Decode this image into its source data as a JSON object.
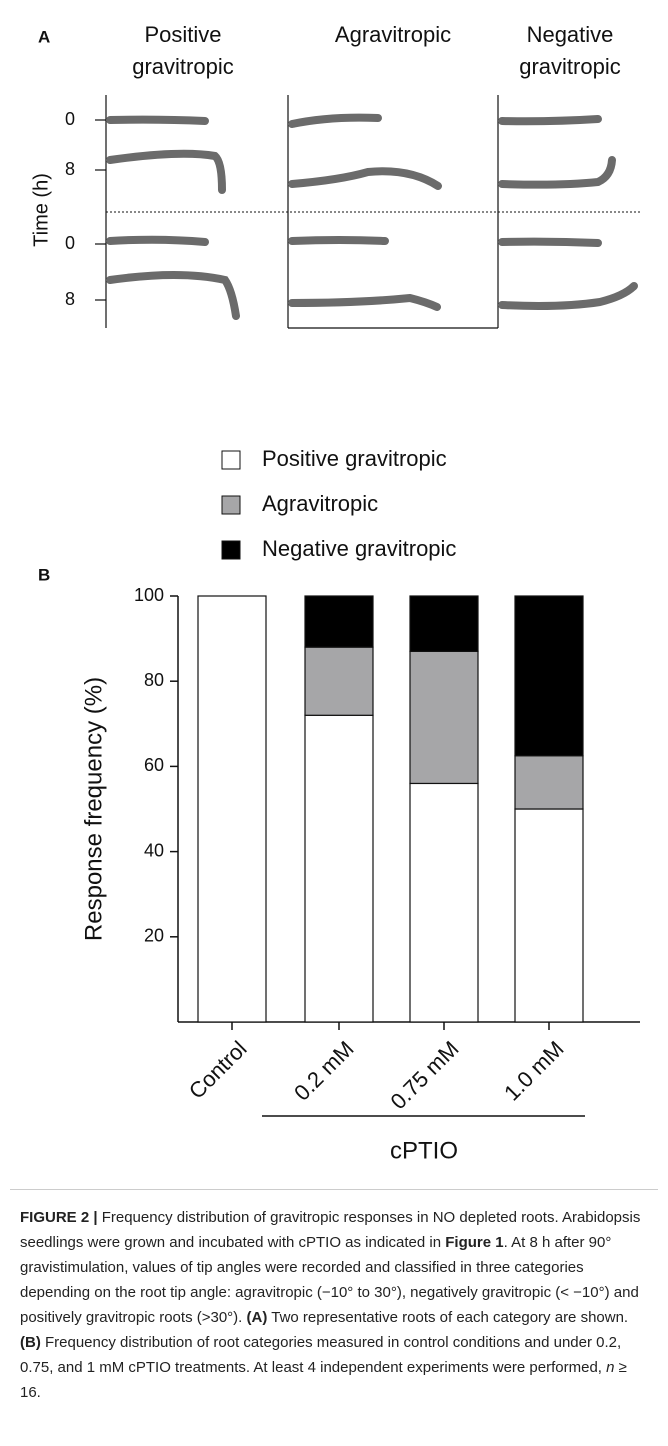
{
  "panel_a": {
    "label": "A",
    "columns": [
      [
        "Positive",
        "gravitropic"
      ],
      [
        "Agravitropic"
      ],
      [
        "Negative",
        "gravitropic"
      ]
    ],
    "y_axis_label": "Time (h)",
    "row_labels": [
      "0",
      "8",
      "0",
      "8"
    ]
  },
  "chart_data": {
    "type": "bar",
    "stacked": true,
    "panel_label": "B",
    "y_axis_label": "Response frequency  (%)",
    "categories": [
      "Control",
      "0.2 mM",
      "0.75 mM",
      "1.0 mM"
    ],
    "group_label": "cPTIO",
    "series": [
      {
        "name": "Positive gravitropic",
        "color": "#ffffff",
        "values": [
          100,
          72,
          56,
          50
        ]
      },
      {
        "name": "Agravitropic",
        "color": "#a6a6a8",
        "values": [
          0,
          16,
          31,
          12.5
        ]
      },
      {
        "name": "Negative gravitropic",
        "color": "#000000",
        "values": [
          0,
          12,
          13,
          37.5
        ]
      }
    ],
    "ylim": [
      0,
      100
    ],
    "yticks": [
      20,
      40,
      60,
      80,
      100
    ]
  },
  "caption": [
    "FIGURE 2 |",
    " Frequency distribution of gravitropic responses in NO depleted roots. Arabidopsis seedlings were grown and incubated with cPTIO as indicated in ",
    "Figure 1",
    ". At 8 h after 90° gravistimulation, values of tip angles were recorded and classified in three categories depending on the root tip angle: agravitropic (−10° to 30°), negatively gravitropic (< −10°) and positively gravitropic roots (>30°). ",
    "(A)",
    " Two representative roots of each category are shown. ",
    "(B)",
    " Frequency distribution of root categories measured in control conditions and under 0.2, 0.75, and 1 mM cPTIO treatments. At least 4 independent experiments were performed, ",
    "n",
    " ≥ 16."
  ]
}
